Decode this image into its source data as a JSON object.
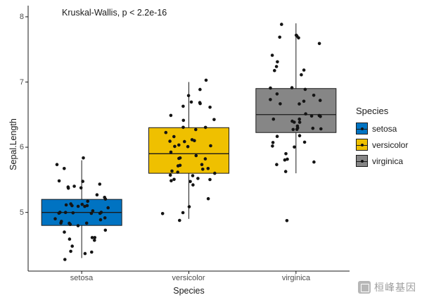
{
  "watermark": {
    "text": "桓峰基因"
  },
  "chart_data": {
    "type": "boxplot",
    "annotation": "Kruskal-Wallis, p < 2.2e-16",
    "xlabel": "Species",
    "ylabel": "Sepal.Length",
    "legend_title": "Species",
    "legend_position": "right",
    "grid": false,
    "ylim": [
      4.1,
      8.15
    ],
    "yticks": [
      5,
      6,
      7,
      8
    ],
    "categories": [
      "setosa",
      "versicolor",
      "virginica"
    ],
    "point_color": "#141414",
    "groups": [
      {
        "name": "setosa",
        "color": "#0073C2",
        "box": {
          "low": 4.3,
          "q1": 4.8,
          "med": 5.0,
          "q3": 5.2,
          "high": 5.8
        },
        "values": [
          5.1,
          4.9,
          4.7,
          4.6,
          5.0,
          5.4,
          4.6,
          5.0,
          4.4,
          4.9,
          5.4,
          4.8,
          4.8,
          4.3,
          5.8,
          5.7,
          5.4,
          5.1,
          5.7,
          5.1,
          5.4,
          5.1,
          4.6,
          5.1,
          4.8,
          5.0,
          5.0,
          5.2,
          5.2,
          4.7,
          4.8,
          5.4,
          5.2,
          5.5,
          4.9,
          5.0,
          5.5,
          4.9,
          4.4,
          5.1,
          5.0,
          4.5,
          4.4,
          5.0,
          5.1,
          4.8,
          5.1,
          4.6,
          5.3,
          5.0
        ]
      },
      {
        "name": "versicolor",
        "color": "#EFC000",
        "box": {
          "low": 4.9,
          "q1": 5.6,
          "med": 5.9,
          "q3": 6.3,
          "high": 7.0
        },
        "values": [
          7.0,
          6.4,
          6.9,
          5.5,
          6.5,
          5.7,
          6.3,
          4.9,
          6.6,
          5.2,
          5.0,
          5.9,
          6.0,
          6.1,
          5.6,
          6.7,
          5.6,
          5.8,
          6.2,
          5.6,
          5.9,
          6.1,
          6.3,
          6.1,
          6.4,
          6.6,
          6.8,
          6.7,
          6.0,
          5.7,
          5.5,
          5.5,
          5.8,
          6.0,
          5.4,
          6.0,
          6.7,
          6.3,
          5.6,
          5.5,
          5.5,
          6.1,
          5.8,
          5.0,
          5.6,
          5.7,
          5.7,
          6.2,
          5.1,
          5.7
        ]
      },
      {
        "name": "virginica",
        "color": "#868686",
        "box": {
          "low": 5.6,
          "q1": 6.225,
          "med": 6.5,
          "q3": 6.9,
          "high": 7.9
        },
        "values": [
          6.3,
          5.8,
          7.1,
          6.3,
          6.5,
          7.6,
          4.9,
          7.3,
          6.7,
          7.2,
          6.5,
          6.4,
          6.8,
          5.7,
          5.8,
          6.4,
          6.5,
          7.7,
          7.7,
          6.0,
          6.9,
          5.6,
          7.7,
          6.3,
          6.7,
          7.2,
          6.2,
          6.1,
          6.4,
          7.2,
          7.4,
          7.9,
          6.4,
          6.3,
          6.1,
          7.7,
          6.3,
          6.4,
          6.0,
          6.9,
          6.7,
          6.9,
          5.8,
          6.8,
          6.7,
          6.7,
          6.3,
          6.5,
          6.2,
          5.9
        ]
      }
    ]
  }
}
